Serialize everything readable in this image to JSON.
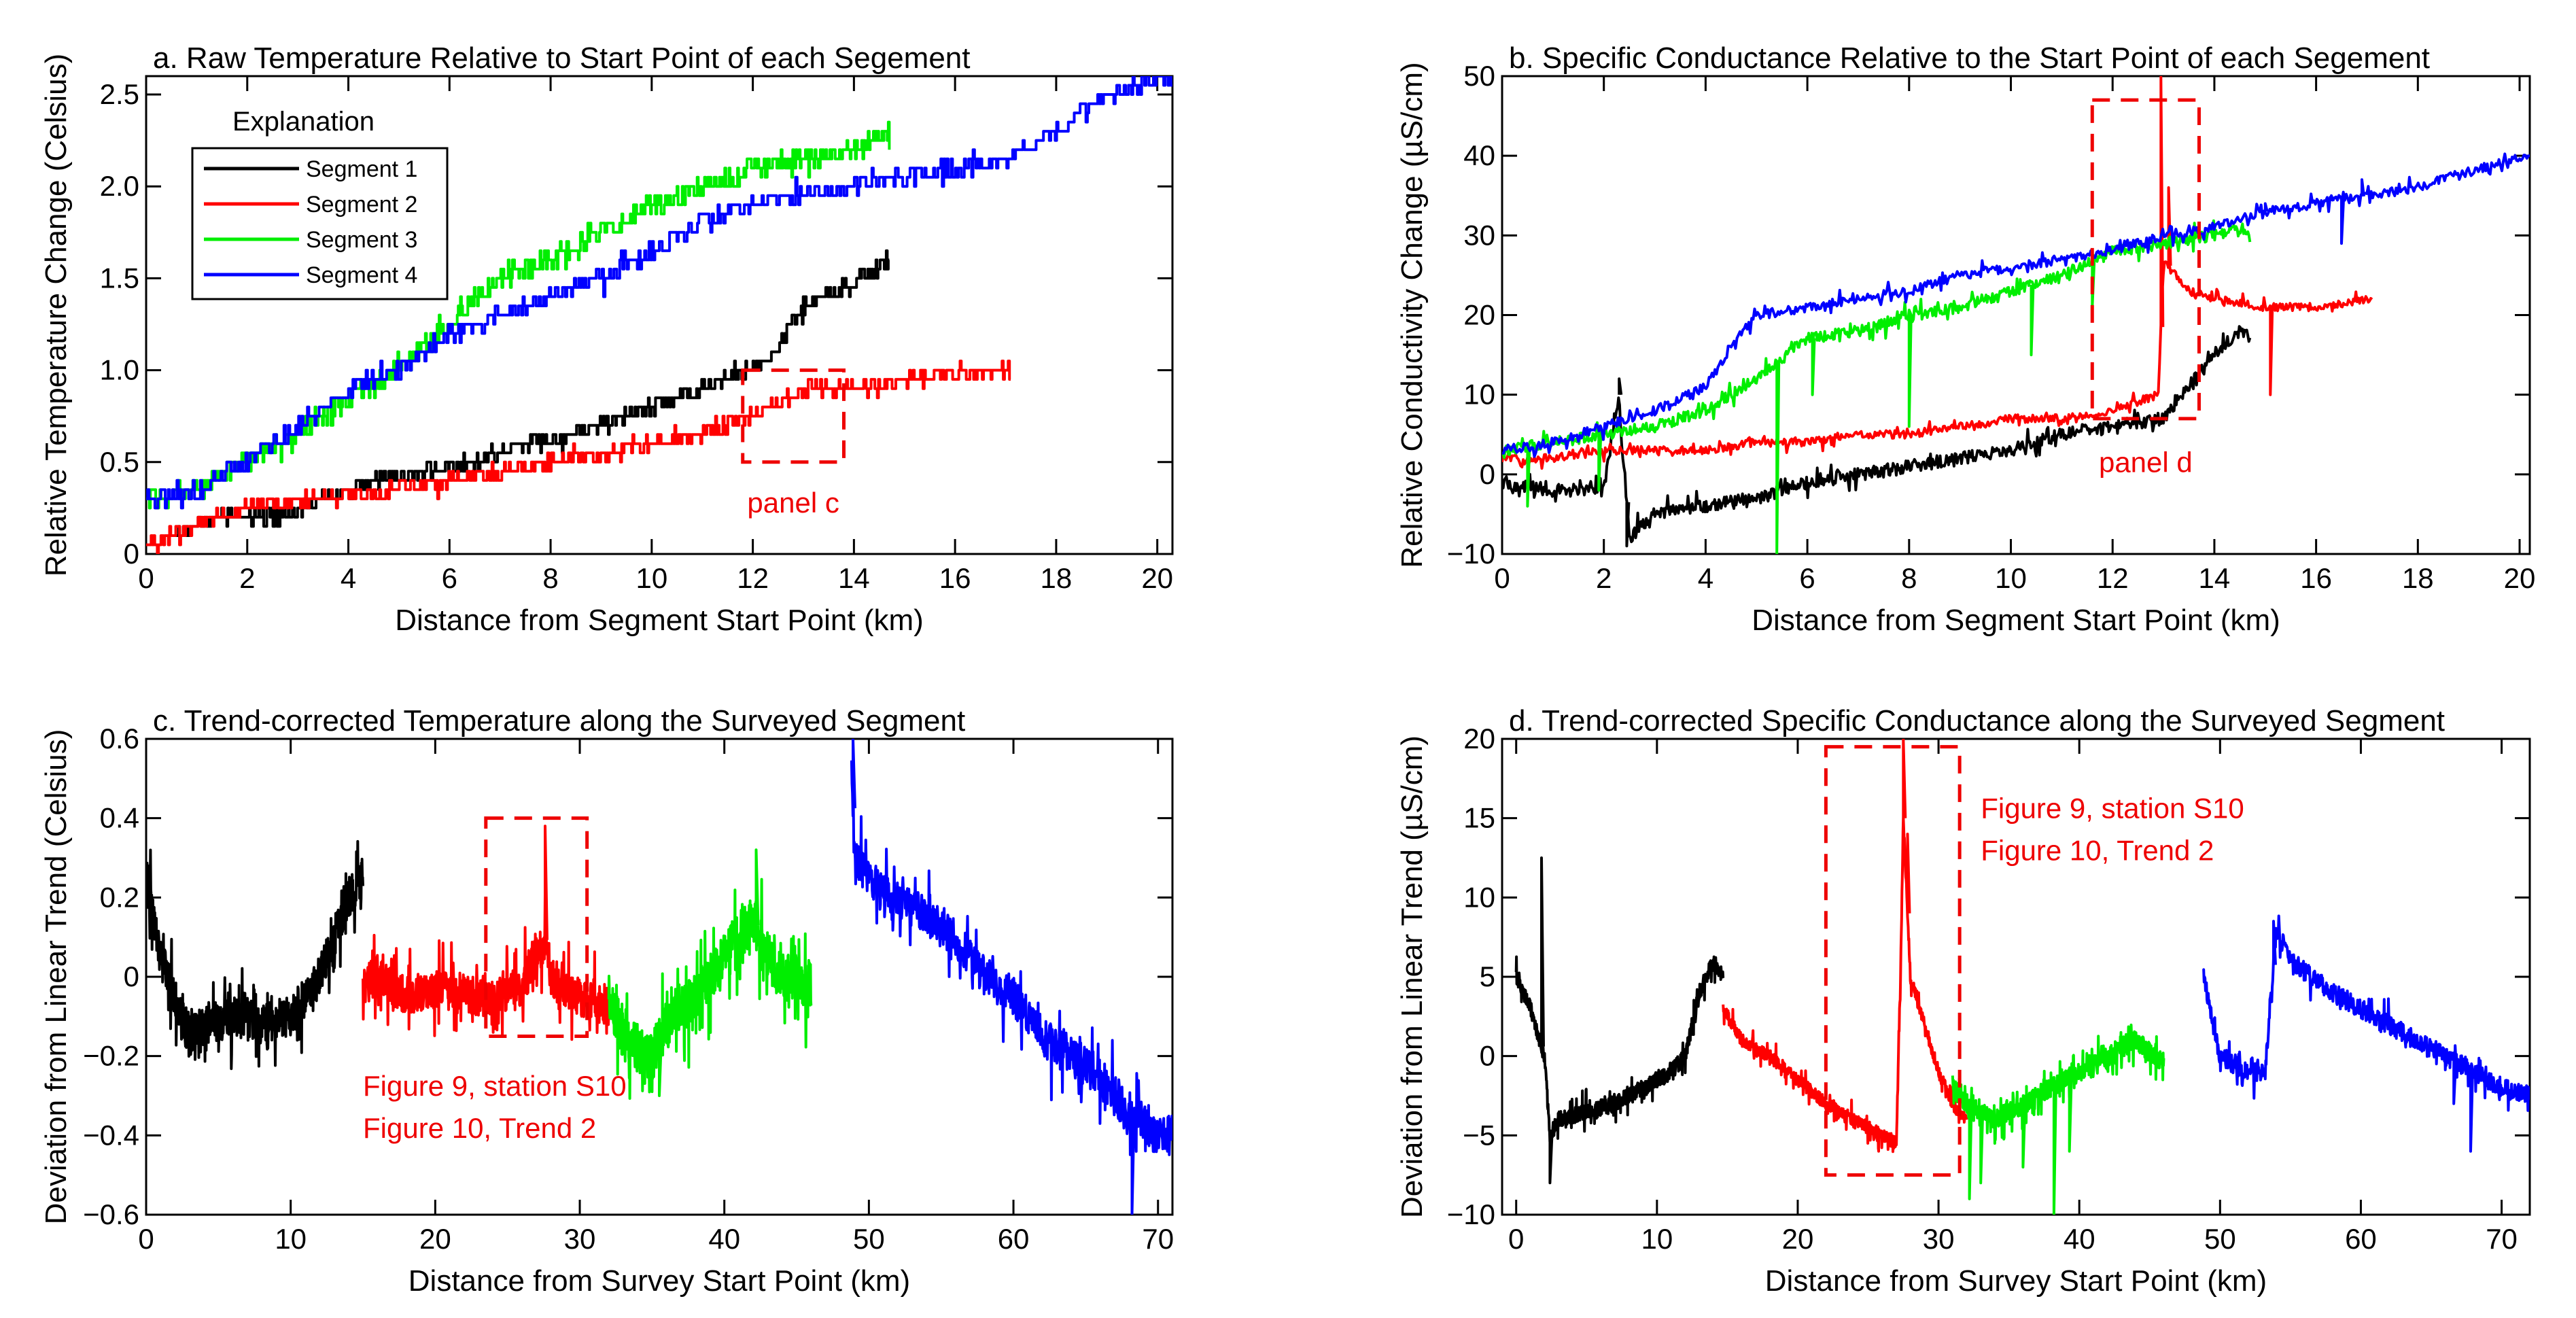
{
  "colors": {
    "segment_1": "#000000",
    "segment_2": "#ff0000",
    "segment_3": "#00ee00",
    "segment_4": "#0000ff",
    "annotation": "#ee0000"
  },
  "legend": {
    "title": "Explanation",
    "entries": [
      {
        "label": "Segment 1",
        "color": "#000000"
      },
      {
        "label": "Segment 2",
        "color": "#ff0000"
      },
      {
        "label": "Segment 3",
        "color": "#00ee00"
      },
      {
        "label": "Segment 4",
        "color": "#0000ff"
      }
    ]
  },
  "chart_data": [
    {
      "id": "a",
      "type": "line",
      "title": "a. Raw Temperature Relative to Start Point of each Segement",
      "xlabel": "Distance from Segment Start Point (km)",
      "ylabel": "Relative Temperature Change (Celsius)",
      "xlim": [
        0,
        20.3
      ],
      "ylim": [
        0,
        2.6
      ],
      "xticks": [
        0,
        2,
        4,
        6,
        8,
        10,
        12,
        14,
        16,
        18,
        20
      ],
      "xtick_labels": [
        "0",
        "2",
        "4",
        "6",
        "8",
        "10",
        "12",
        "14",
        "16",
        "18",
        "20"
      ],
      "yticks": [
        0,
        0.5,
        1.0,
        1.5,
        2.0,
        2.5
      ],
      "ytick_labels": [
        "0",
        "0.5",
        "1.0",
        "1.5",
        "2.0",
        "2.5"
      ],
      "series": [
        {
          "name": "Segment 1",
          "color": "#000000",
          "x": [
            0.5,
            1.5,
            2.5,
            3.5,
            4.5,
            5.5,
            6.5,
            7.5,
            8.5,
            9.5,
            10.5,
            11.5,
            12.3,
            13.0,
            13.8,
            14.7
          ],
          "y": [
            0.1,
            0.2,
            0.2,
            0.3,
            0.4,
            0.45,
            0.5,
            0.6,
            0.65,
            0.75,
            0.85,
            0.95,
            1.05,
            1.35,
            1.45,
            1.6
          ],
          "noise": 0.04,
          "step": true
        },
        {
          "name": "Segment 2",
          "color": "#ff0000",
          "x": [
            0,
            1,
            2,
            3,
            4,
            5,
            6,
            7,
            8,
            9,
            10,
            11,
            12,
            13,
            14,
            15,
            16,
            17.1
          ],
          "y": [
            0.05,
            0.15,
            0.25,
            0.3,
            0.32,
            0.35,
            0.4,
            0.45,
            0.5,
            0.55,
            0.6,
            0.65,
            0.75,
            0.9,
            0.9,
            0.95,
            0.98,
            1.0
          ],
          "noise": 0.04,
          "step": true
        },
        {
          "name": "Segment 3",
          "color": "#00ee00",
          "x": [
            0,
            1,
            2,
            3,
            4,
            5,
            6,
            7,
            8,
            9,
            10,
            11,
            12,
            13,
            14,
            14.7
          ],
          "y": [
            0.3,
            0.35,
            0.5,
            0.65,
            0.85,
            1.0,
            1.25,
            1.5,
            1.6,
            1.75,
            1.9,
            2.0,
            2.1,
            2.15,
            2.2,
            2.3
          ],
          "noise": 0.06,
          "step": true
        },
        {
          "name": "Segment 4",
          "color": "#0000ff",
          "x": [
            0,
            1,
            2,
            3,
            4,
            5,
            6,
            7,
            8,
            9,
            10,
            11,
            12,
            13,
            14,
            15,
            16,
            17,
            18,
            19,
            20.3
          ],
          "y": [
            0.3,
            0.35,
            0.5,
            0.7,
            0.9,
            1.0,
            1.2,
            1.3,
            1.4,
            1.5,
            1.65,
            1.8,
            1.9,
            1.95,
            2.0,
            2.05,
            2.1,
            2.15,
            2.3,
            2.5,
            2.6
          ],
          "noise": 0.05,
          "step": true
        }
      ],
      "annotation": {
        "label": "panel c",
        "x_range": [
          11.8,
          13.8
        ],
        "y_range": [
          0.5,
          1.0
        ],
        "label_x": 12.8,
        "label_y": 0.3
      }
    },
    {
      "id": "b",
      "type": "line",
      "title": "b. Specific Conductance Relative to the Start Point of each Segement",
      "xlabel": "Distance from Segment Start Point (km)",
      "ylabel": "Relative Conductivity Change (µS/cm)",
      "xlim": [
        0,
        20.2
      ],
      "ylim": [
        -10,
        50
      ],
      "xticks": [
        0,
        2,
        4,
        6,
        8,
        10,
        12,
        14,
        16,
        18,
        20
      ],
      "xtick_labels": [
        "0",
        "2",
        "4",
        "6",
        "8",
        "10",
        "12",
        "14",
        "16",
        "18",
        "20"
      ],
      "yticks": [
        -10,
        0,
        10,
        20,
        30,
        40,
        50
      ],
      "ytick_labels": [
        "−10",
        "0",
        "10",
        "20",
        "30",
        "40",
        "50"
      ],
      "series": [
        {
          "name": "Segment 1",
          "color": "#000000",
          "x": [
            0,
            1,
            2,
            2.3,
            2.5,
            3,
            4,
            5,
            6,
            7,
            8,
            9,
            10,
            11,
            12,
            13,
            13.5,
            14,
            14.5,
            14.7
          ],
          "y": [
            -1,
            -2,
            -2,
            10,
            -8,
            -5,
            -4,
            -3,
            -1,
            0,
            1,
            2,
            3,
            5,
            6,
            7,
            11,
            15,
            18,
            17
          ],
          "noise": 0.8,
          "step": false,
          "spikes": [
            [
              2.3,
              12
            ],
            [
              2.45,
              -9
            ]
          ]
        },
        {
          "name": "Segment 2",
          "color": "#ff0000",
          "x": [
            0,
            1,
            2,
            3,
            4,
            5,
            6,
            7,
            8,
            9,
            10,
            11,
            12,
            12.9,
            13.0,
            13.5,
            14,
            15,
            16,
            17.1
          ],
          "y": [
            2,
            2,
            3,
            3,
            3,
            4,
            4,
            5,
            5,
            6,
            7,
            7,
            8,
            10,
            27,
            23,
            22,
            21,
            21,
            22
          ],
          "noise": 0.5,
          "step": false,
          "spikes": [
            [
              12.95,
              50
            ],
            [
              13.1,
              36
            ],
            [
              15.1,
              10
            ]
          ]
        },
        {
          "name": "Segment 3",
          "color": "#00ee00",
          "x": [
            0,
            1,
            2,
            3,
            4,
            5,
            6,
            7,
            8,
            9,
            10,
            11,
            12,
            13,
            14,
            14.7
          ],
          "y": [
            3,
            4,
            5,
            6,
            8,
            12,
            17,
            18,
            20,
            21,
            23,
            25,
            28,
            29,
            30,
            31
          ],
          "noise": 0.7,
          "step": false,
          "spikes": [
            [
              5.4,
              -10
            ],
            [
              6.1,
              10
            ],
            [
              8,
              6
            ],
            [
              10.4,
              15
            ],
            [
              11.6,
              21
            ],
            [
              0.5,
              -4
            ],
            [
              1.9,
              -2
            ]
          ]
        },
        {
          "name": "Segment 4",
          "color": "#0000ff",
          "x": [
            0,
            1,
            2,
            3,
            4,
            4.5,
            5,
            6,
            7,
            8,
            9,
            10,
            11,
            12,
            13,
            14,
            15,
            16,
            17,
            18,
            19,
            20.2
          ],
          "y": [
            3,
            4,
            6,
            8,
            11,
            16,
            20,
            21,
            22,
            23,
            25,
            26,
            27,
            28,
            30,
            31,
            33,
            34,
            35,
            36,
            38,
            40
          ],
          "noise": 0.6,
          "step": false,
          "spikes": [
            [
              16.9,
              37
            ],
            [
              15,
              34
            ],
            [
              16.3,
              35
            ],
            [
              16.5,
              29
            ]
          ]
        }
      ],
      "annotation": {
        "label": "panel d",
        "x_range": [
          11.6,
          13.7
        ],
        "y_range": [
          7,
          47
        ],
        "label_x": 12.65,
        "label_y": 2
      }
    },
    {
      "id": "c",
      "type": "line",
      "title": "c. Trend-corrected Temperature along the Surveyed Segment",
      "xlabel": "Distance from Survey Start Point (km)",
      "ylabel": "Deviation from Linear Trend (Celsius)",
      "xlim": [
        0,
        71
      ],
      "ylim": [
        -0.6,
        0.6
      ],
      "xticks": [
        0,
        10,
        20,
        30,
        40,
        50,
        60,
        70
      ],
      "xtick_labels": [
        "0",
        "10",
        "20",
        "30",
        "40",
        "50",
        "60",
        "70"
      ],
      "yticks": [
        -0.6,
        -0.4,
        -0.2,
        0,
        0.2,
        0.4,
        0.6
      ],
      "ytick_labels": [
        "−0.6",
        "−0.4",
        "−0.2",
        "0",
        "0.2",
        "0.4",
        "0.6"
      ],
      "series": [
        {
          "name": "Segment 1",
          "color": "#000000",
          "x": [
            0,
            1,
            2,
            3,
            4,
            6,
            8,
            10,
            12,
            13,
            14,
            15
          ],
          "y": [
            0.25,
            0.05,
            -0.05,
            -0.15,
            -0.12,
            -0.1,
            -0.12,
            -0.1,
            0.0,
            0.1,
            0.2,
            0.25
          ],
          "noise": 0.05,
          "step": false,
          "spikes": [
            [
              0.2,
              0.28
            ]
          ]
        },
        {
          "name": "Segment 2",
          "color": "#ff0000",
          "x": [
            15,
            16,
            17,
            18,
            20,
            22,
            24,
            26,
            27,
            27.7,
            28,
            30,
            32
          ],
          "y": [
            -0.02,
            0.0,
            -0.03,
            -0.05,
            -0.03,
            -0.04,
            -0.06,
            -0.02,
            0.05,
            0.1,
            0.0,
            -0.05,
            -0.08
          ],
          "noise": 0.05,
          "step": false,
          "spikes": [
            [
              27.6,
              0.38
            ]
          ]
        },
        {
          "name": "Segment 3",
          "color": "#00ee00",
          "x": [
            32,
            33,
            34,
            35,
            36,
            38,
            40,
            42,
            43,
            44,
            46
          ],
          "y": [
            -0.05,
            -0.15,
            -0.18,
            -0.2,
            -0.12,
            -0.05,
            0.05,
            0.15,
            0.05,
            0.0,
            -0.02
          ],
          "noise": 0.06,
          "step": false,
          "spikes": [
            [
              35.5,
              -0.3
            ],
            [
              42.2,
              0.32
            ]
          ]
        },
        {
          "name": "Segment 4",
          "color": "#0000ff",
          "x": [
            48.8,
            49,
            50,
            52,
            54,
            56,
            58,
            60,
            62,
            64,
            66,
            68,
            70,
            71
          ],
          "y": [
            0.55,
            0.3,
            0.25,
            0.2,
            0.15,
            0.1,
            0.0,
            -0.05,
            -0.15,
            -0.2,
            -0.25,
            -0.35,
            -0.4,
            -0.4
          ],
          "noise": 0.05,
          "step": false,
          "spikes": [
            [
              48.9,
              0.6
            ],
            [
              68.2,
              -0.6
            ]
          ]
        }
      ],
      "annotation": {
        "label_lines": [
          "Figure 9, station S10",
          "Figure 10, Trend 2"
        ],
        "x_range": [
          23.5,
          30.5
        ],
        "y_range": [
          -0.15,
          0.4
        ],
        "label_x": 15,
        "label_y": -0.3
      }
    },
    {
      "id": "d",
      "type": "line",
      "title": "d. Trend-corrected Specific Conductance along the Surveyed Segment",
      "xlabel": "Distance from Survey Start Point (km)",
      "ylabel": "Deviation from Linear Trend (µS/cm)",
      "xlim": [
        -1,
        72
      ],
      "ylim": [
        -10,
        20
      ],
      "xticks": [
        0,
        10,
        20,
        30,
        40,
        50,
        60,
        70
      ],
      "xtick_labels": [
        "0",
        "10",
        "20",
        "30",
        "40",
        "50",
        "60",
        "70"
      ],
      "yticks": [
        -10,
        -5,
        0,
        5,
        10,
        15,
        20
      ],
      "ytick_labels": [
        "−10",
        "−5",
        "0",
        "5",
        "10",
        "15",
        "20"
      ],
      "series": [
        {
          "name": "Segment 1",
          "color": "#000000",
          "x": [
            0,
            1,
            2,
            2.4,
            3,
            5,
            7,
            9,
            11,
            12,
            13,
            14,
            14.7
          ],
          "y": [
            5,
            3,
            0,
            -5,
            -4,
            -3.5,
            -3,
            -2,
            -1,
            0,
            4,
            6,
            5
          ],
          "noise": 0.5,
          "step": false,
          "spikes": [
            [
              1.8,
              12.5
            ],
            [
              2.4,
              -8
            ]
          ]
        },
        {
          "name": "Segment 2",
          "color": "#ff0000",
          "x": [
            14.7,
            16,
            18,
            20,
            22,
            24,
            26,
            27,
            27.3,
            27.5,
            28,
            29,
            30,
            31,
            32
          ],
          "y": [
            3,
            1,
            0,
            -1.5,
            -3,
            -4,
            -5,
            -5.5,
            5,
            15,
            5,
            2,
            -1,
            -3,
            -4
          ],
          "noise": 0.4,
          "step": false,
          "spikes": [
            [
              27.5,
              20
            ],
            [
              27.8,
              14
            ]
          ]
        },
        {
          "name": "Segment 3",
          "color": "#00ee00",
          "x": [
            31,
            32,
            34,
            36,
            38,
            40,
            42,
            44,
            46
          ],
          "y": [
            -2,
            -3,
            -4,
            -3,
            -2,
            -1,
            0,
            1,
            -0.5
          ],
          "noise": 0.6,
          "step": false,
          "spikes": [
            [
              33,
              -8
            ],
            [
              36,
              -7
            ],
            [
              38.2,
              -10
            ],
            [
              39.3,
              -6
            ],
            [
              32.2,
              -9
            ]
          ]
        },
        {
          "name": "Segment 4",
          "color": "#0000ff",
          "x": [
            48.8,
            50,
            52,
            53.2,
            54,
            55,
            58,
            60,
            62,
            64,
            66,
            68,
            70,
            72
          ],
          "y": [
            5,
            0,
            -1,
            -1,
            8,
            6,
            4,
            3,
            2,
            1,
            0,
            -1,
            -2,
            -2.5
          ],
          "noise": 0.6,
          "step": false,
          "spikes": [
            [
              67.8,
              -6
            ],
            [
              66.6,
              -3
            ],
            [
              53.8,
              8.5
            ]
          ]
        }
      ],
      "annotation": {
        "label_lines": [
          "Figure 9, station S10",
          "Figure 10, Trend 2"
        ],
        "x_range": [
          22,
          31.5
        ],
        "y_range": [
          -7.5,
          19.5
        ],
        "label_x": 33,
        "label_y": 15
      }
    }
  ]
}
